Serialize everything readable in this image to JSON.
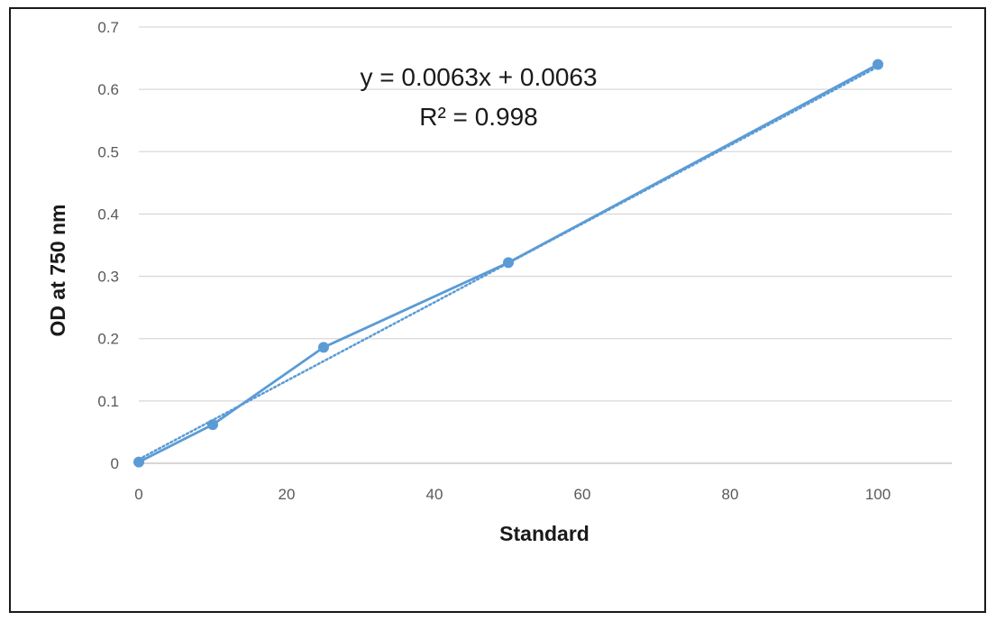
{
  "chart_data": {
    "type": "scatter",
    "xlabel": "Standard",
    "ylabel": "OD at 750 nm",
    "xlim": [
      0,
      110
    ],
    "ylim": [
      0,
      0.7
    ],
    "x_ticks": [
      "0",
      "20",
      "40",
      "60",
      "80",
      "100"
    ],
    "y_ticks": [
      "0",
      "0.1",
      "0.2",
      "0.3",
      "0.4",
      "0.5",
      "0.6",
      "0.7"
    ],
    "grid": "horizontal",
    "series": [
      {
        "x": [
          0,
          10,
          25,
          50,
          100
        ],
        "y": [
          0.002,
          0.062,
          0.186,
          0.322,
          0.64
        ],
        "style": "line-with-markers",
        "color": "#5b9bd5"
      }
    ],
    "trendline": {
      "type": "linear",
      "slope": 0.0063,
      "intercept": 0.0063,
      "style": "dotted",
      "color": "#5b9bd5",
      "equation": "y = 0.0063x + 0.0063",
      "r_squared": "R² = 0.998"
    }
  }
}
